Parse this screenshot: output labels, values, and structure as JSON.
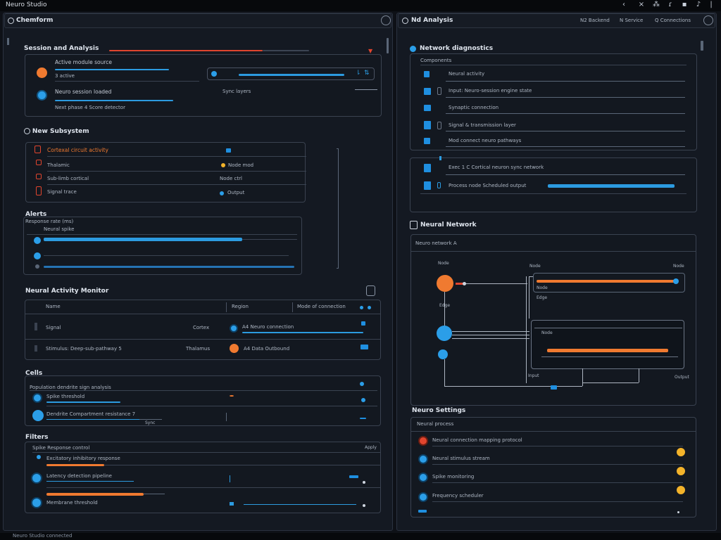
{
  "window": {
    "title": "Neuro Studio"
  },
  "left_pane": {
    "header": {
      "title": "Chemform"
    },
    "section1": {
      "title": "Session and Analysis",
      "row1_label": "Active module source",
      "row1_value": "3 active",
      "row2_label": "Neuro session loaded",
      "row2_caption": "Next phase 4 Score detector",
      "row2_side": "Sync layers"
    },
    "section2": {
      "title": "New Subsystem",
      "items": [
        {
          "label": "Cortexal circuit activity",
          "value": ""
        },
        {
          "label": "Thalamic",
          "value": "Node mod"
        },
        {
          "label": "Sub-limb cortical",
          "value": "Node ctrl"
        },
        {
          "label": "Signal trace",
          "value": "Output"
        }
      ]
    },
    "section3": {
      "title": "Alerts",
      "caption": "Response rate (ms)",
      "row_label": "Neural spike"
    },
    "table": {
      "title": "Neural Activity Monitor",
      "headers": [
        "Name",
        "Region",
        "Mode of connection"
      ],
      "rows": [
        {
          "name": "Signal",
          "region": "Cortex",
          "detail": "A4 Neuro connection"
        },
        {
          "name": "Stimulus: Deep-sub-pathway 5",
          "region": "Thalamus",
          "detail": "A4 Data Outbound"
        }
      ]
    },
    "section5": {
      "title": "Cells",
      "header_label": "Population dendrite sign analysis",
      "rows": [
        {
          "label": "Spike threshold"
        },
        {
          "label": "Dendrite Compartment resistance 7",
          "value": "Sync"
        }
      ]
    },
    "section6": {
      "title": "Filters",
      "header_label": "Spike Response control",
      "header_right": "Apply",
      "rows": [
        {
          "label": "Excitatory inhibitory response"
        },
        {
          "label": "Latency detection pipeline"
        },
        {
          "label": "Membrane threshold"
        }
      ]
    }
  },
  "right_pane": {
    "header": {
      "title": "Nd Analysis",
      "tabs": [
        "N2 Backend",
        "N Service",
        "Q Connections"
      ]
    },
    "section1": {
      "title": "Network diagnostics",
      "caption": "Components",
      "items": [
        "Neural activity",
        "Input: Neuro-session engine state",
        "Synaptic connection",
        "Signal & transmission layer",
        "Mod connect neuro pathways"
      ]
    },
    "section2": {
      "items": [
        "Exec 1 C Cortical neuron sync network",
        "Process node Scheduled output"
      ]
    },
    "diagram": {
      "title": "Neural Network",
      "caption": "Neuro network A",
      "labels": [
        "Node",
        "Node",
        "Node",
        "Edge",
        "Edge",
        "Input",
        "Output"
      ]
    },
    "section4": {
      "title": "Neuro Settings",
      "caption": "Neural process",
      "items": [
        "Neural connection mapping protocol",
        "Neural stimulus stream",
        "Spike monitoring",
        "Frequency scheduler"
      ]
    }
  },
  "status": {
    "text": "Neuro Studio connected"
  },
  "colors": {
    "accent_blue": "#2c9be0",
    "accent_orange": "#f07a30",
    "alert_red": "#e0452e",
    "warn_yellow": "#f3b32a"
  }
}
